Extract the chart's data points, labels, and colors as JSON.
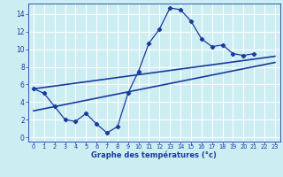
{
  "xlabel": "Graphe des températures (°c)",
  "bg_color": "#cceef2",
  "line_color": "#1a3a9e",
  "xlim": [
    -0.5,
    23.5
  ],
  "ylim": [
    -0.5,
    15.2
  ],
  "xticks": [
    0,
    1,
    2,
    3,
    4,
    5,
    6,
    7,
    8,
    9,
    10,
    11,
    12,
    13,
    14,
    15,
    16,
    17,
    18,
    19,
    20,
    21,
    22,
    23
  ],
  "yticks": [
    0,
    2,
    4,
    6,
    8,
    10,
    12,
    14
  ],
  "temp_curve_x": [
    0,
    1,
    2,
    3,
    4,
    5,
    6,
    7,
    8,
    9,
    10,
    11,
    12,
    13,
    14,
    15,
    16,
    17,
    18,
    19,
    20,
    21
  ],
  "temp_curve_y": [
    5.5,
    5.0,
    3.5,
    2.0,
    1.8,
    2.7,
    1.5,
    0.5,
    1.2,
    5.0,
    7.5,
    10.7,
    12.3,
    14.7,
    14.5,
    13.2,
    11.2,
    10.3,
    10.5,
    9.5,
    9.3,
    9.5
  ],
  "trend1_x": [
    0,
    23
  ],
  "trend1_y": [
    5.5,
    9.2
  ],
  "trend2_x": [
    0,
    23
  ],
  "trend2_y": [
    3.0,
    8.5
  ]
}
